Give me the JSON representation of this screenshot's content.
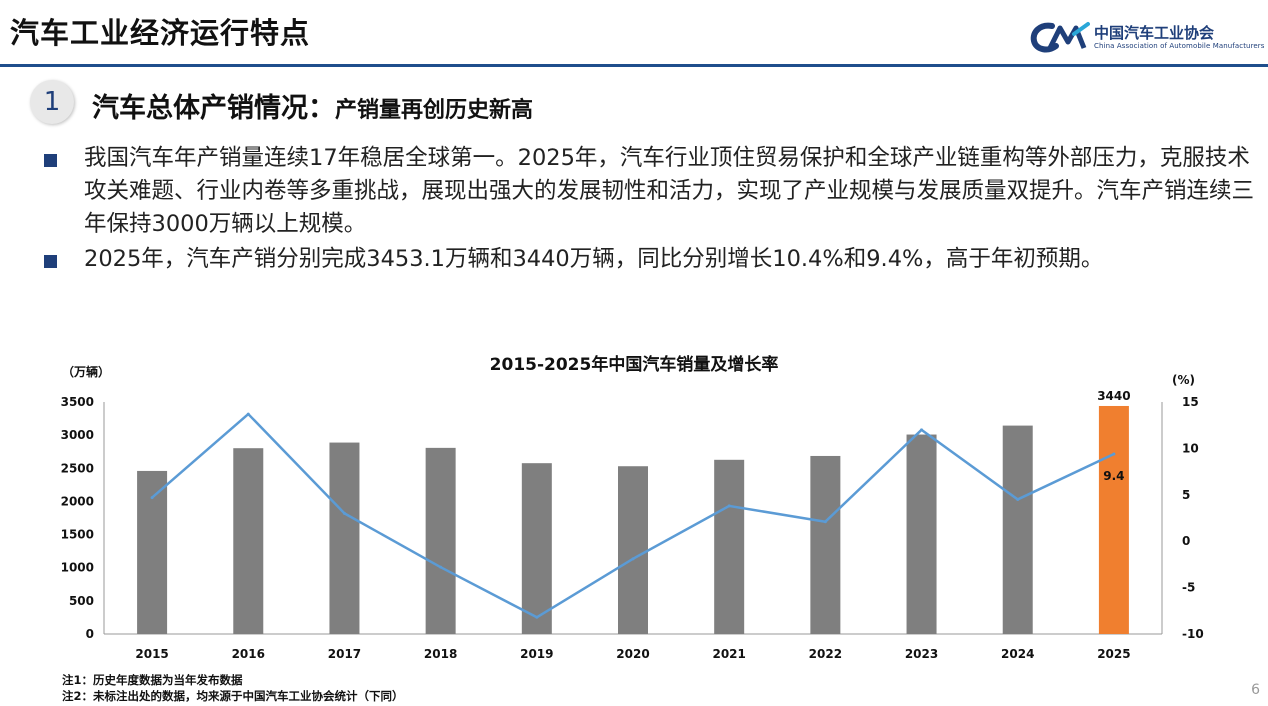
{
  "header": {
    "title": "汽车工业经济运行特点",
    "logo_cn": "中国汽车工业协会",
    "logo_en": "China Association of Automobile Manufacturers"
  },
  "section": {
    "number": "1",
    "title": "汽车总体产销情况：",
    "subtitle": "产销量再创历史新高"
  },
  "bullets": [
    "我国汽车年产销量连续17年稳居全球第一。2025年，汽车行业顶住贸易保护和全球产业链重构等外部压力，克服技术攻关难题、行业内卷等多重挑战，展现出强大的发展韧性和活力，实现了产业规模与发展质量双提升。汽车产销连续三年保持3000万辆以上规模。",
    "2025年，汽车产销分别完成3453.1万辆和3440万辆，同比分别增长10.4%和9.4%，高于年初预期。"
  ],
  "chart_data": {
    "type": "bar",
    "title": "2015-2025年中国汽车销量及增长率",
    "ylabel": "（万辆）",
    "y2label": "(%)",
    "ylim": [
      0,
      3500
    ],
    "yticks": [
      0,
      500,
      1000,
      1500,
      2000,
      2500,
      3000,
      3500
    ],
    "y2lim": [
      -10,
      15
    ],
    "y2ticks": [
      -10,
      -5,
      0,
      5,
      10,
      15
    ],
    "categories": [
      "2015",
      "2016",
      "2017",
      "2018",
      "2019",
      "2020",
      "2021",
      "2022",
      "2023",
      "2024",
      "2025"
    ],
    "series": [
      {
        "type": "bar",
        "axis": "left",
        "values": [
          2460,
          2803,
          2888,
          2808,
          2577,
          2531,
          2628,
          2686,
          3009,
          3144,
          3440
        ],
        "color": "#7f7f7f",
        "highlight_index": 10,
        "highlight_color": "#f07f2f"
      },
      {
        "type": "line",
        "axis": "right",
        "values": [
          4.7,
          13.7,
          3.0,
          -2.8,
          -8.2,
          -1.9,
          3.8,
          2.1,
          12.0,
          4.5,
          9.4
        ],
        "color": "#5b9bd5"
      }
    ],
    "data_labels": [
      {
        "series": 0,
        "index": 10,
        "text": "3440"
      },
      {
        "series": 1,
        "index": 10,
        "text": "9.4"
      }
    ],
    "grid": false,
    "legend": "none"
  },
  "notes": [
    "注1：历史年度数据为当年发布数据",
    "注2：未标注出处的数据，均来源于中国汽车工业协会统计（下同）"
  ],
  "page_number": "6"
}
